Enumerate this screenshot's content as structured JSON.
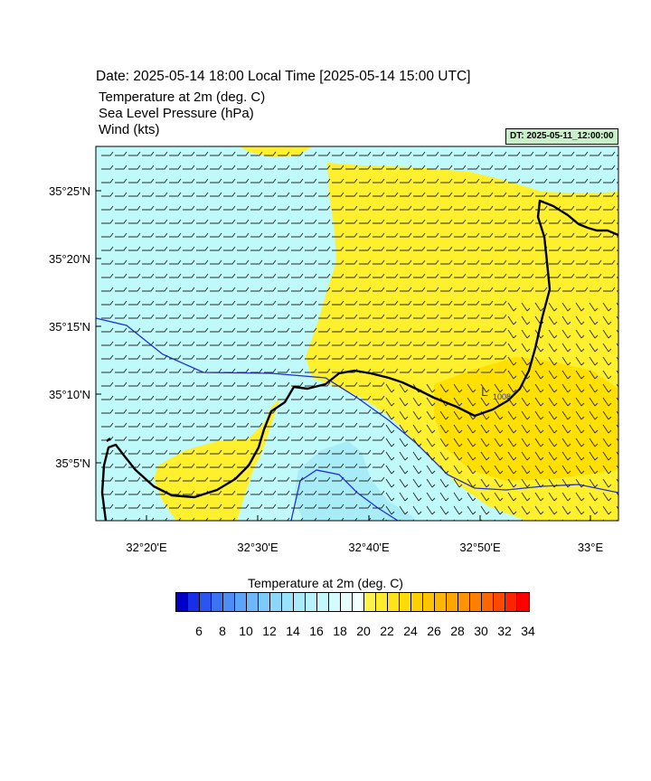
{
  "header": {
    "title": "Date: 2025-05-14  18:00 Local Time [2025-05-14  15:00 UTC]",
    "line1": "Temperature at 2m   (deg. C)",
    "line2": "Sea Level Pressure   (hPa)",
    "line3": "Wind   (kts)",
    "dt_badge": "DT: 2025-05-11_12:00:00"
  },
  "map": {
    "lat_labels": [
      "35°25'N",
      "35°20'N",
      "35°15'N",
      "35°10'N",
      "35°5'N"
    ],
    "lon_labels": [
      "32°20'E",
      "32°30'E",
      "32°40'E",
      "32°50'E",
      "33°E"
    ],
    "pressure_low_label": "L",
    "pressure_low_value": "1008",
    "colors": {
      "cool": "#bff9f9",
      "warm": "#fff02e",
      "warmer": "#ffe000",
      "cold_pocket": "#a7ecf7",
      "isobar": "#1e32d8",
      "coast": "#000000"
    }
  },
  "colorbar": {
    "title": "Temperature at 2m  (deg. C)",
    "labels": [
      "6",
      "8",
      "10",
      "12",
      "14",
      "16",
      "18",
      "20",
      "22",
      "24",
      "26",
      "28",
      "30",
      "32",
      "34"
    ],
    "colors": [
      "#0000c8",
      "#1530e6",
      "#2a55f0",
      "#3b74f3",
      "#4c8ef6",
      "#5ca4f8",
      "#6cb8fa",
      "#7ccbfa",
      "#8cd8fb",
      "#9ae2fc",
      "#a8ecfc",
      "#b6f3fc",
      "#c4f8fd",
      "#d4fbfd",
      "#e6fdfe",
      "#f4ffff",
      "#fff24a",
      "#ffec2e",
      "#ffe31a",
      "#ffdb0a",
      "#ffd000",
      "#ffc400",
      "#ffb600",
      "#ffa600",
      "#ff9400",
      "#ff7f00",
      "#ff6600",
      "#ff4800",
      "#ff2400",
      "#ff0000"
    ]
  }
}
